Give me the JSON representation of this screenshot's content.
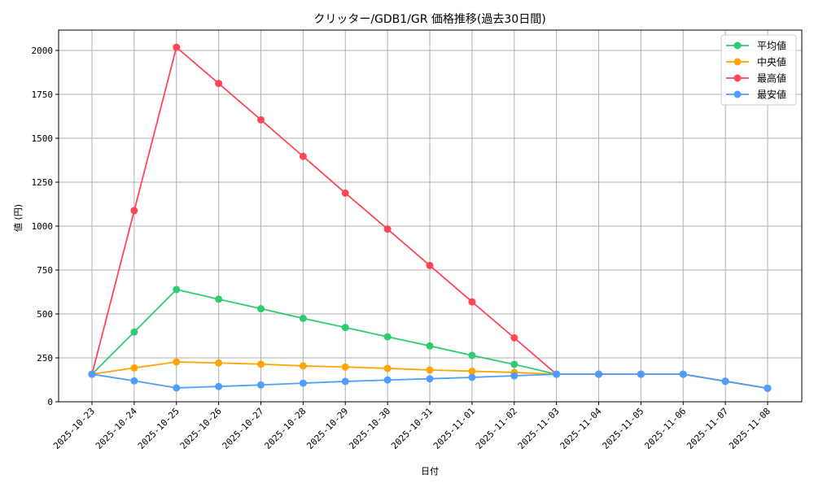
{
  "chart_data": {
    "type": "line",
    "title": "クリッター/GDB1/GR 価格推移(過去30日間)",
    "xlabel": "日付",
    "ylabel": "値 (円)",
    "ylim": [
      -20,
      2110
    ],
    "yticks": [
      0,
      250,
      500,
      750,
      1000,
      1250,
      1500,
      1750,
      2000
    ],
    "grid": true,
    "legend_position": "upper right",
    "categories": [
      "2025-10-23",
      "2025-10-24",
      "2025-10-25",
      "2025-10-26",
      "2025-10-27",
      "2025-10-28",
      "2025-10-29",
      "2025-10-30",
      "2025-10-31",
      "2025-11-01",
      "2025-11-02",
      "2025-11-03",
      "2025-11-04",
      "2025-11-05",
      "2025-11-06",
      "2025-11-07",
      "2025-11-08"
    ],
    "series": [
      {
        "name": "平均値",
        "color": "#2ecc71",
        "values": [
          157,
          397,
          639,
          584,
          530,
          475,
          423,
          370,
          318,
          264,
          213,
          157,
          157,
          157,
          157,
          117,
          77
        ]
      },
      {
        "name": "中央値",
        "color": "#ffa502",
        "values": [
          157,
          193,
          227,
          221,
          214,
          204,
          198,
          190,
          181,
          174,
          167,
          157,
          157,
          157,
          157,
          117,
          77
        ]
      },
      {
        "name": "最高値",
        "color": "#ff4757",
        "values": [
          157,
          1088,
          2018,
          1812,
          1605,
          1397,
          1188,
          983,
          776,
          569,
          364,
          157,
          157,
          157,
          157,
          117,
          77
        ]
      },
      {
        "name": "最安値",
        "color": "#4d9fff",
        "values": [
          157,
          119,
          79,
          87,
          96,
          106,
          116,
          124,
          131,
          139,
          148,
          157,
          157,
          157,
          157,
          117,
          77
        ]
      }
    ]
  }
}
